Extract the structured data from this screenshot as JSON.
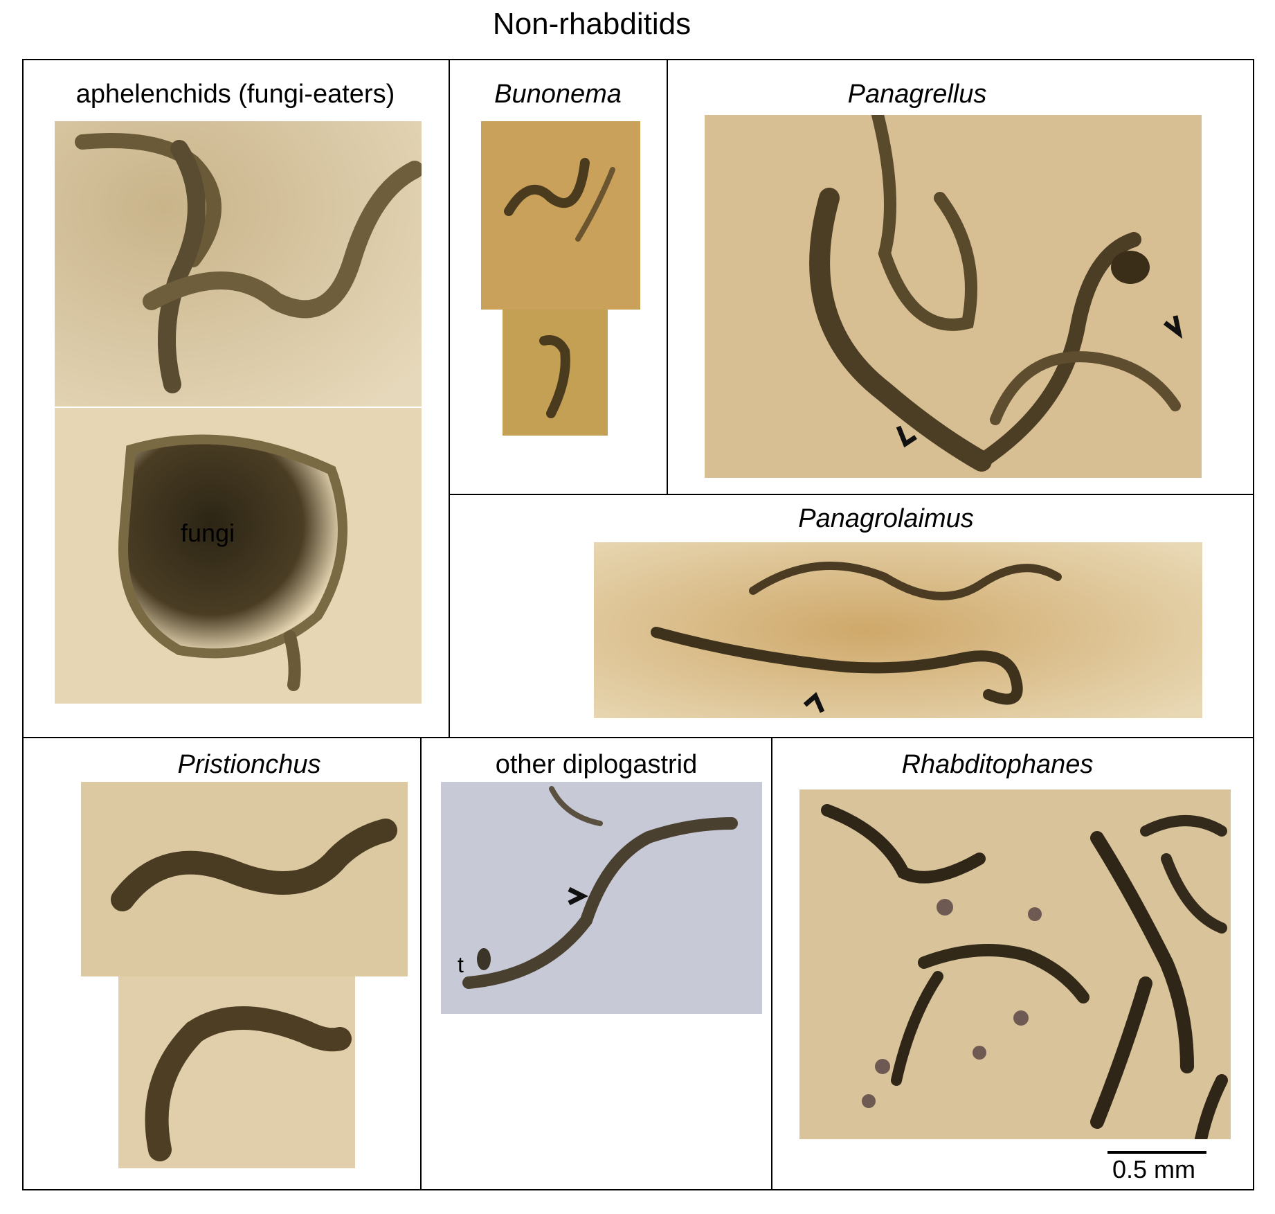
{
  "figure_title": "Non-rhabditids",
  "panels": {
    "aphelenchids": {
      "label": "aphelenchids (fungi-eaters)",
      "annotation": "fungi"
    },
    "bunonema": {
      "label": "Bunonema"
    },
    "panagrellus": {
      "label": "Panagrellus"
    },
    "panagrolaimus": {
      "label": "Panagrolaimus"
    },
    "pristionchus": {
      "label": "Pristionchus"
    },
    "diplogastrid": {
      "label": "other  diplogastrid",
      "annotation": "t"
    },
    "rhabditophanes": {
      "label": "Rhabditophanes"
    }
  },
  "scale": {
    "label": "0.5 mm"
  },
  "colors": {
    "tan_bg": "#d9c29a",
    "amber_bg": "#c9a15a",
    "blue_bg": "#c7c9d6",
    "worm_dark": "#3b3020"
  }
}
